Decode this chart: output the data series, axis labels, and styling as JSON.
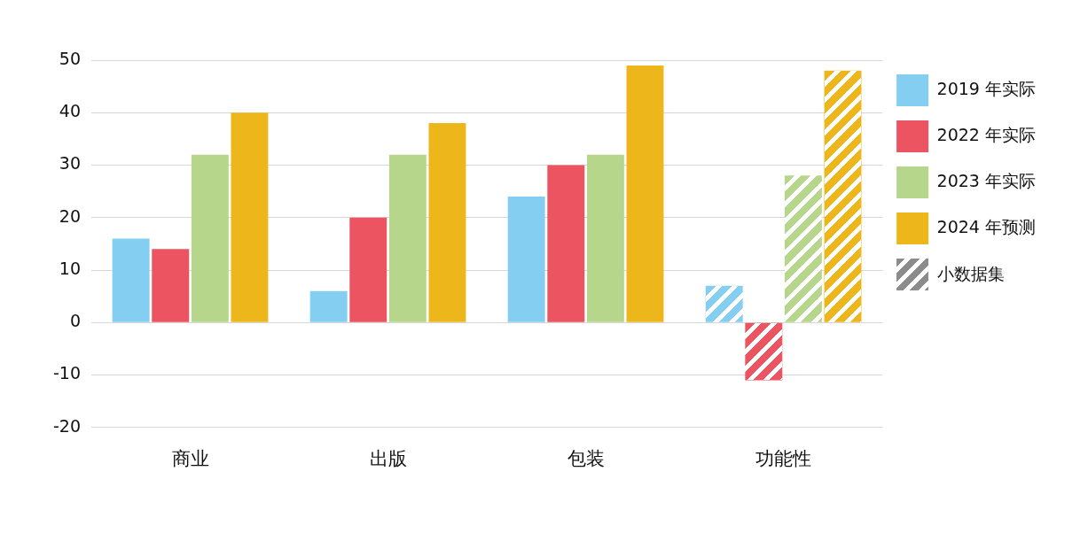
{
  "chart_data": {
    "type": "bar",
    "categories": [
      "商业",
      "出版",
      "包装",
      "功能性"
    ],
    "series": [
      {
        "name": "2019 年实际",
        "color": "#84cef1",
        "values": [
          16,
          6,
          24,
          7
        ]
      },
      {
        "name": "2022 年实际",
        "color": "#ec5461",
        "values": [
          14,
          20,
          30,
          -11
        ]
      },
      {
        "name": "2023 年实际",
        "color": "#b6d78b",
        "values": [
          32,
          32,
          32,
          28
        ]
      },
      {
        "name": "2024 年预测",
        "color": "#edb71c",
        "values": [
          40,
          38,
          49,
          48
        ]
      }
    ],
    "ylim": [
      -20,
      50
    ],
    "yticks": [
      -20,
      -10,
      0,
      10,
      20,
      30,
      40,
      50
    ],
    "grid": "y",
    "legend": "top right",
    "annotations": [
      "小数据集"
    ]
  }
}
